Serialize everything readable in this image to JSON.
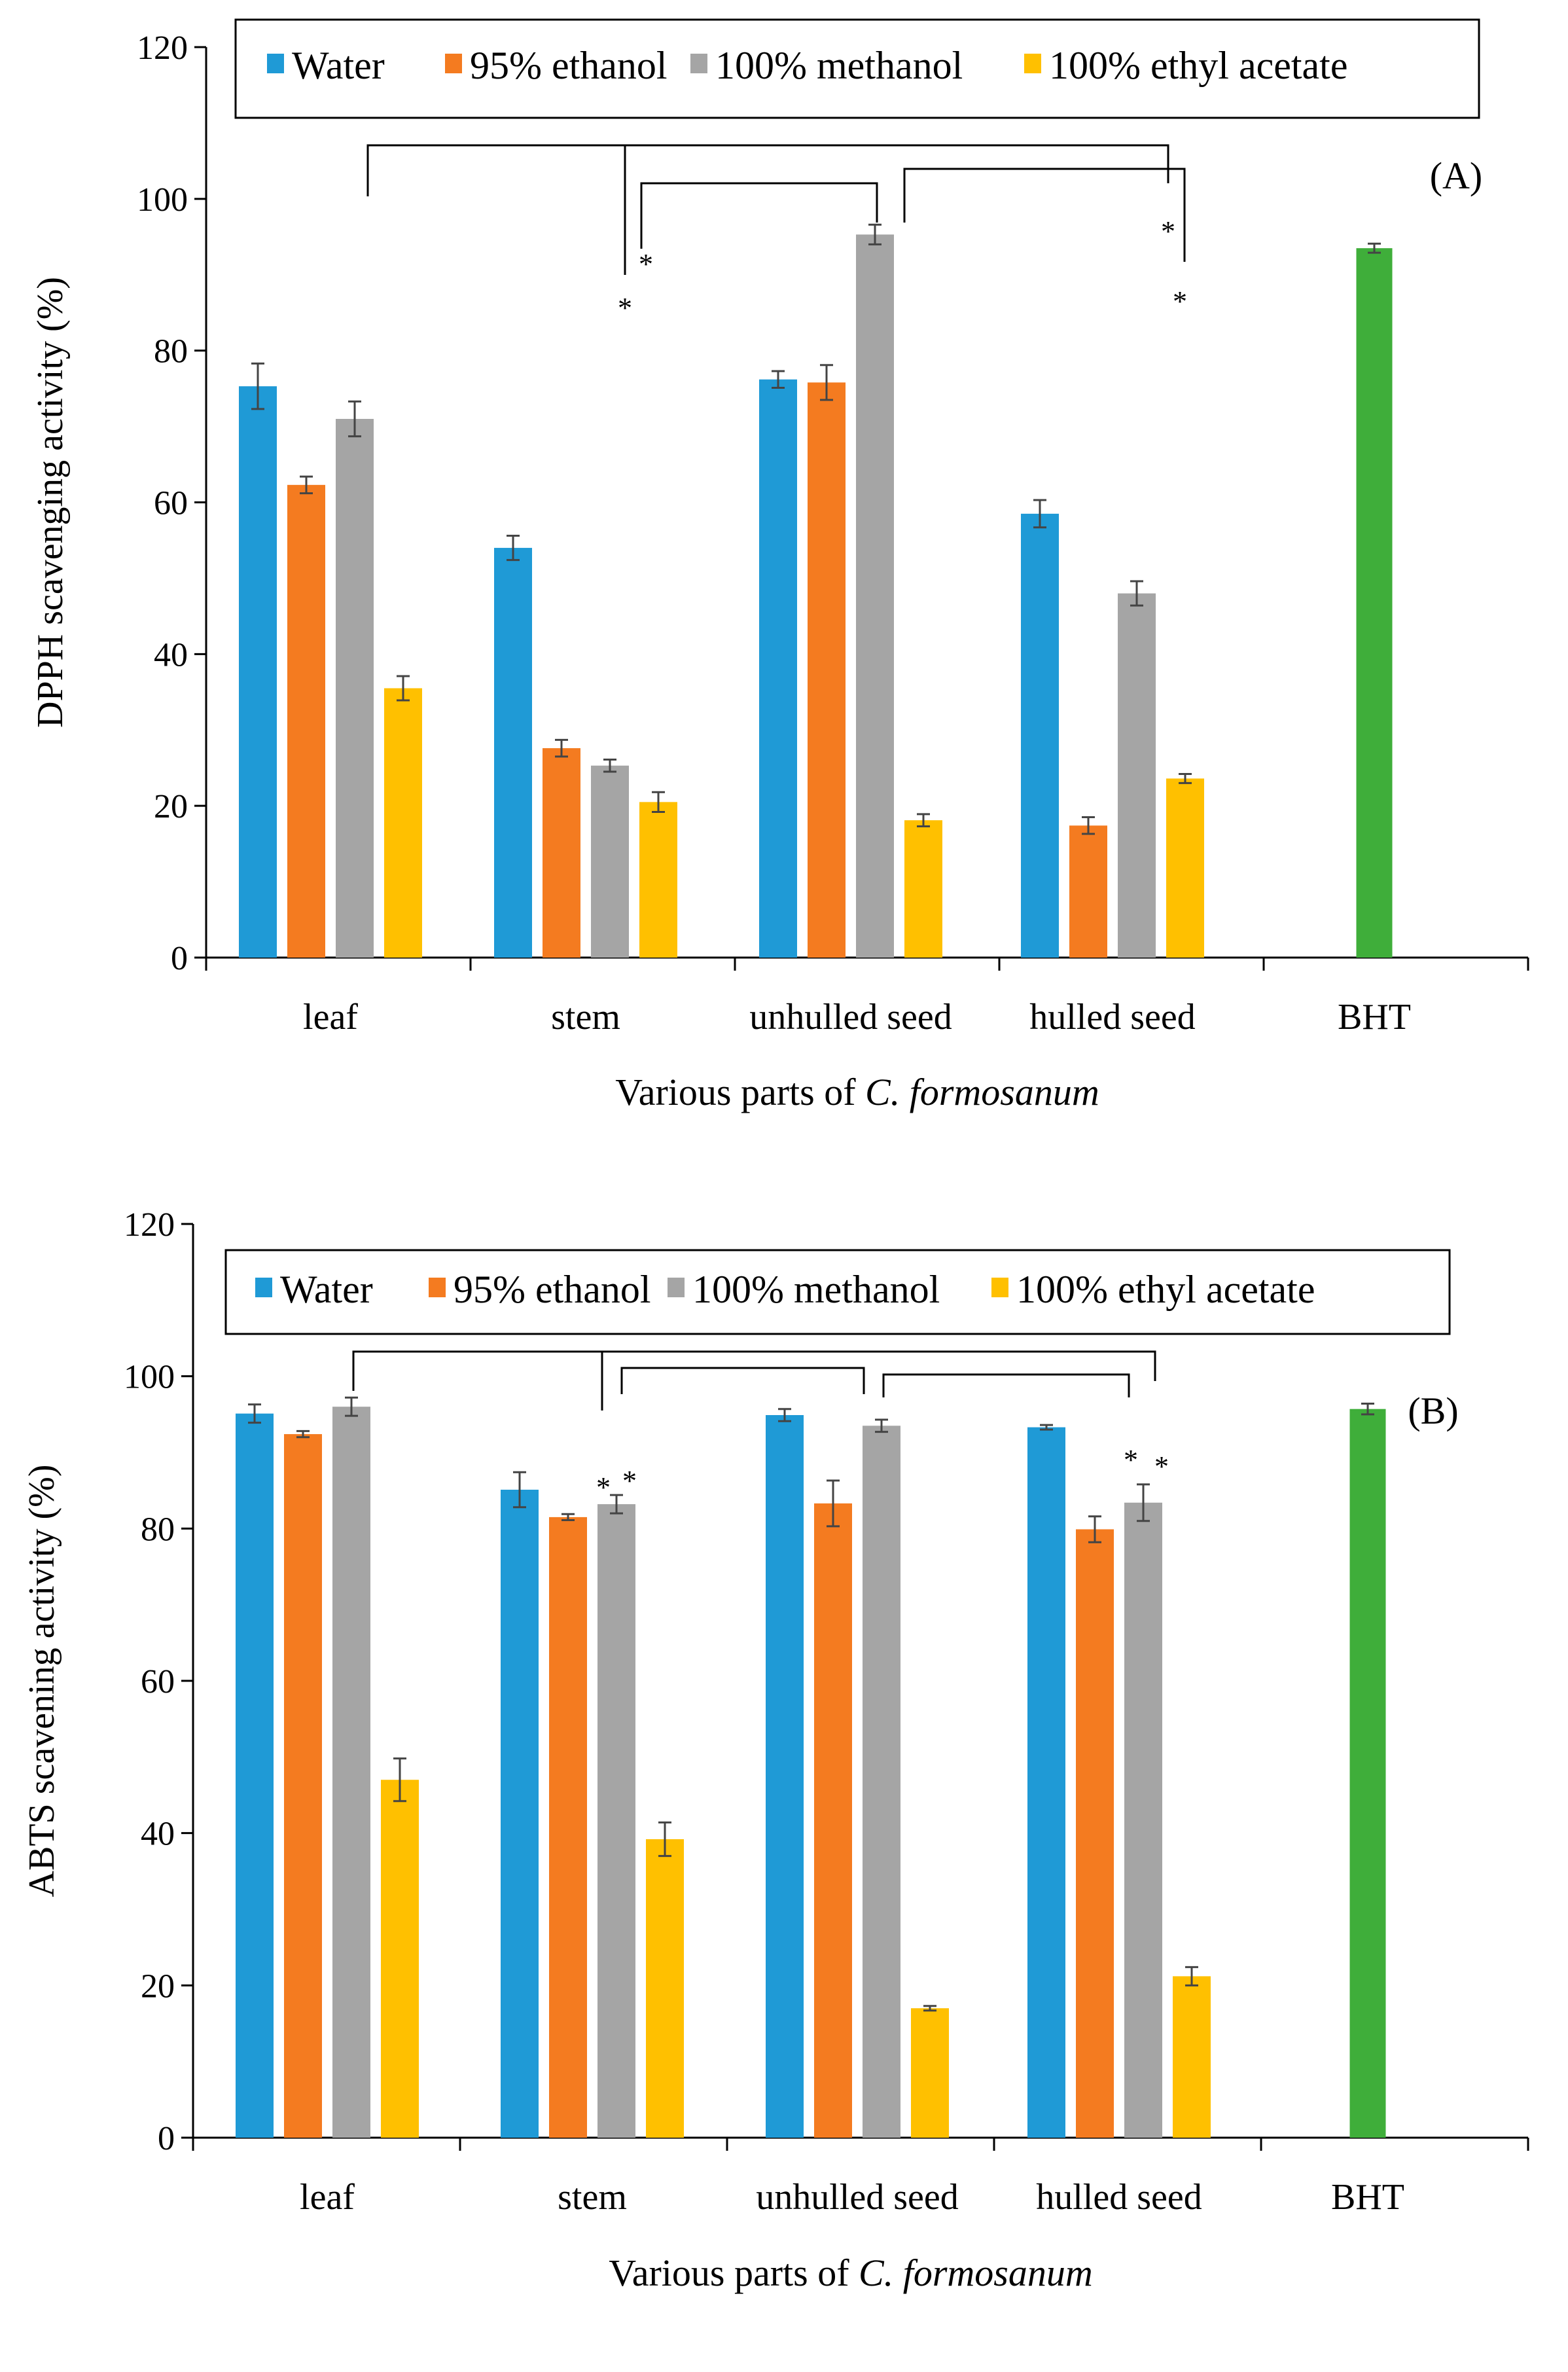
{
  "chart_data": [
    {
      "type": "bar",
      "panel_label": "(A)",
      "ylabel": "DPPH scavenging activity (%)",
      "xlabel_prefix": "Various parts of",
      "xlabel_italic": "C. formosanum",
      "ylim": [
        0,
        120
      ],
      "yticks": [
        "0",
        "20",
        "40",
        "60",
        "80",
        "100",
        "120"
      ],
      "categories": [
        "leaf",
        "stem",
        "unhulled seed",
        "hulled seed",
        "BHT"
      ],
      "series": [
        {
          "name": "Water",
          "color": "#1f9ad6",
          "values": [
            75.3,
            54.0,
            76.2,
            58.5,
            null
          ],
          "errors": [
            3.0,
            1.6,
            1.1,
            1.8,
            null
          ]
        },
        {
          "name": "95% ethanol",
          "color": "#f47b20",
          "values": [
            62.3,
            27.6,
            75.8,
            17.4,
            null
          ],
          "errors": [
            1.1,
            1.1,
            2.3,
            1.1,
            null
          ]
        },
        {
          "name": "100% methanol",
          "color": "#a5a5a5",
          "values": [
            71.0,
            25.3,
            95.3,
            48.0,
            null
          ],
          "errors": [
            2.3,
            0.8,
            1.3,
            1.6,
            null
          ]
        },
        {
          "name": "100% ethyl acetate",
          "color": "#ffc000",
          "values": [
            35.5,
            20.5,
            18.1,
            23.6,
            null
          ],
          "errors": [
            1.6,
            1.3,
            0.8,
            0.6,
            null
          ]
        },
        {
          "name": "BHT",
          "color": "#3fae3a",
          "values": [
            null,
            null,
            null,
            null,
            93.5
          ],
          "errors": [
            null,
            null,
            null,
            null,
            0.6
          ]
        }
      ],
      "significance_marker": "*",
      "legend_location": "top"
    },
    {
      "type": "bar",
      "panel_label": "(B)",
      "ylabel": "ABTS scavening activity (%)",
      "xlabel_prefix": "Various parts of",
      "xlabel_italic": "C. formosanum",
      "ylim": [
        0,
        120
      ],
      "yticks": [
        "0",
        "20",
        "40",
        "60",
        "80",
        "100",
        "120"
      ],
      "categories": [
        "leaf",
        "stem",
        "unhulled seed",
        "hulled seed",
        "BHT"
      ],
      "series": [
        {
          "name": "Water",
          "color": "#1f9ad6",
          "values": [
            95.1,
            85.1,
            94.9,
            93.3,
            null
          ],
          "errors": [
            1.2,
            2.3,
            0.8,
            0.3,
            null
          ]
        },
        {
          "name": "95% ethanol",
          "color": "#f47b20",
          "values": [
            92.4,
            81.5,
            83.3,
            79.9,
            null
          ],
          "errors": [
            0.4,
            0.4,
            3.0,
            1.7,
            null
          ]
        },
        {
          "name": "100% methanol",
          "color": "#a5a5a5",
          "values": [
            96.0,
            83.2,
            93.5,
            83.4,
            null
          ],
          "errors": [
            1.2,
            1.2,
            0.8,
            2.4,
            null
          ]
        },
        {
          "name": "100% ethyl acetate",
          "color": "#ffc000",
          "values": [
            47.0,
            39.2,
            17.0,
            21.2,
            null
          ],
          "errors": [
            2.8,
            2.2,
            0.3,
            1.2,
            null
          ]
        },
        {
          "name": "BHT",
          "color": "#3fae3a",
          "values": [
            null,
            null,
            null,
            null,
            95.7
          ],
          "errors": [
            null,
            null,
            null,
            null,
            0.7
          ]
        }
      ],
      "significance_marker": "*",
      "legend_location": "top"
    }
  ]
}
